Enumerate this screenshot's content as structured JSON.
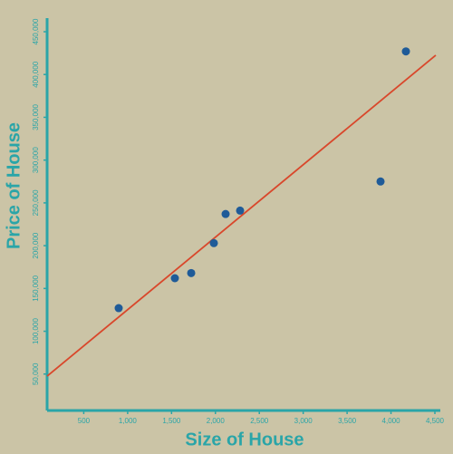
{
  "chart_data": {
    "type": "scatter",
    "x_label": "Size of House",
    "y_label": "Price of House",
    "series": [
      {
        "color": "#1f5b98",
        "x": [
          898,
          1538,
          1724,
          1982,
          2116,
          2281,
          3881,
          4170
        ],
        "values": [
          127000,
          162000,
          168000,
          203000,
          237000,
          241000,
          275000,
          427000
        ]
      }
    ],
    "trend_line": {
      "color": "#d9472b",
      "x": [
        83,
        4510
      ],
      "values": [
        47600,
        422500
      ]
    },
    "xlim": [
      0,
      4500
    ],
    "xticks": [
      500,
      {
        "value": 1000,
        "label": "1,000"
      },
      {
        "value": 1500,
        "label": "1,500"
      },
      {
        "value": 2000,
        "label": "2,000"
      },
      {
        "value": 2500,
        "label": "2,500"
      },
      {
        "value": 3000,
        "label": "3,000"
      },
      {
        "value": 3500,
        "label": "3,500"
      },
      {
        "value": 4000,
        "label": "4,000"
      },
      {
        "value": 4500,
        "label": "4,500"
      }
    ],
    "ylim": [
      0,
      450000
    ],
    "yticks": [
      {
        "value": 50000,
        "label": "50,000"
      },
      {
        "value": 100000,
        "label": "100,000"
      },
      {
        "value": 150000,
        "label": "150,000"
      },
      {
        "value": 200000,
        "label": "200,000"
      },
      {
        "value": 250000,
        "label": "250,000"
      },
      {
        "value": 300000,
        "label": "300,000"
      },
      {
        "value": 350000,
        "label": "350,000"
      },
      {
        "value": 400000,
        "label": "400,000"
      },
      {
        "value": 450000,
        "label": "450,000"
      }
    ],
    "axis_color": "#2aa5a8",
    "background": "#cbc4a6"
  }
}
